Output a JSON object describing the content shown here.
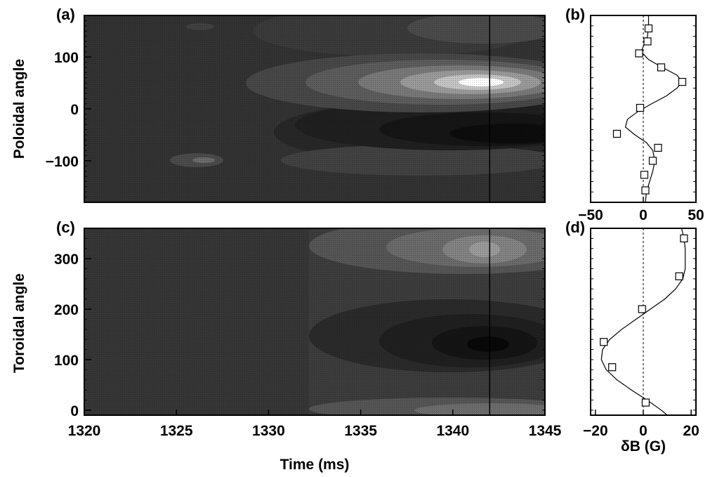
{
  "chart_data": [
    {
      "panel": "(a)",
      "type": "heatmap",
      "ylabel": "Poloidal angle",
      "xlabel": "",
      "xlim": [
        1320,
        1345
      ],
      "ylim": [
        -180,
        180
      ],
      "yticks": [
        -100,
        0,
        100
      ],
      "ytick_labels": [
        "−100",
        "0",
        "100"
      ],
      "marker_time": 1342,
      "contour_levels": 12
    },
    {
      "panel": "(b)",
      "type": "scatter",
      "xlim": [
        -50,
        50
      ],
      "ylim": [
        -180,
        180
      ],
      "xticks": [
        -50,
        0,
        50
      ],
      "xtick_labels": [
        "−50",
        "0",
        "50"
      ],
      "points": [
        {
          "angle": 155,
          "dB": 5
        },
        {
          "angle": 130,
          "dB": 4
        },
        {
          "angle": 107,
          "dB": -4
        },
        {
          "angle": 80,
          "dB": 17
        },
        {
          "angle": 52,
          "dB": 37
        },
        {
          "angle": 2,
          "dB": -3
        },
        {
          "angle": -48,
          "dB": -25
        },
        {
          "angle": -75,
          "dB": 14
        },
        {
          "angle": -100,
          "dB": 9
        },
        {
          "angle": -127,
          "dB": 1
        },
        {
          "angle": -157,
          "dB": 2
        }
      ],
      "fit": [
        [
          -180,
          2
        ],
        [
          -160,
          3
        ],
        [
          -140,
          6
        ],
        [
          -120,
          9
        ],
        [
          -100,
          11
        ],
        [
          -80,
          9
        ],
        [
          -65,
          3
        ],
        [
          -50,
          -8
        ],
        [
          -35,
          -17
        ],
        [
          -20,
          -15
        ],
        [
          -5,
          -5
        ],
        [
          10,
          8
        ],
        [
          25,
          22
        ],
        [
          40,
          32
        ],
        [
          52,
          37
        ],
        [
          65,
          32
        ],
        [
          80,
          18
        ],
        [
          95,
          5
        ],
        [
          110,
          -2
        ],
        [
          125,
          1
        ],
        [
          140,
          4
        ],
        [
          160,
          5
        ],
        [
          180,
          5
        ]
      ]
    },
    {
      "panel": "(c)",
      "type": "heatmap",
      "ylabel": "Toroidal angle",
      "xlabel": "Time (ms)",
      "xlim": [
        1320,
        1345
      ],
      "ylim": [
        -10,
        360
      ],
      "xticks": [
        1320,
        1325,
        1330,
        1335,
        1340,
        1345
      ],
      "xtick_labels": [
        "1320",
        "1325",
        "1330",
        "1335",
        "1340",
        "1345"
      ],
      "yticks": [
        0,
        100,
        200,
        300
      ],
      "ytick_labels": [
        "0",
        "100",
        "200",
        "300"
      ],
      "marker_time": 1342,
      "contour_levels": 10
    },
    {
      "panel": "(d)",
      "type": "scatter",
      "xlabel": "δB (G)",
      "xlim": [
        -22,
        22
      ],
      "ylim": [
        -10,
        360
      ],
      "xticks": [
        -20,
        0,
        20
      ],
      "xtick_labels": [
        "−20",
        "0",
        "20"
      ],
      "points": [
        {
          "angle": 340,
          "dB": 17
        },
        {
          "angle": 265,
          "dB": 15
        },
        {
          "angle": 200,
          "dB": -0.5
        },
        {
          "angle": 135,
          "dB": -16.5
        },
        {
          "angle": 85,
          "dB": -13
        },
        {
          "angle": 15,
          "dB": 1
        }
      ],
      "fit": [
        [
          -10,
          10
        ],
        [
          0,
          7.5
        ],
        [
          20,
          1.5
        ],
        [
          40,
          -5
        ],
        [
          60,
          -11
        ],
        [
          80,
          -15.5
        ],
        [
          100,
          -17.5
        ],
        [
          120,
          -17
        ],
        [
          140,
          -14
        ],
        [
          160,
          -9
        ],
        [
          180,
          -3
        ],
        [
          200,
          3
        ],
        [
          220,
          9
        ],
        [
          240,
          13.5
        ],
        [
          260,
          16.5
        ],
        [
          280,
          17.5
        ],
        [
          300,
          17.5
        ],
        [
          320,
          17.5
        ],
        [
          340,
          17
        ],
        [
          360,
          16
        ]
      ]
    }
  ]
}
